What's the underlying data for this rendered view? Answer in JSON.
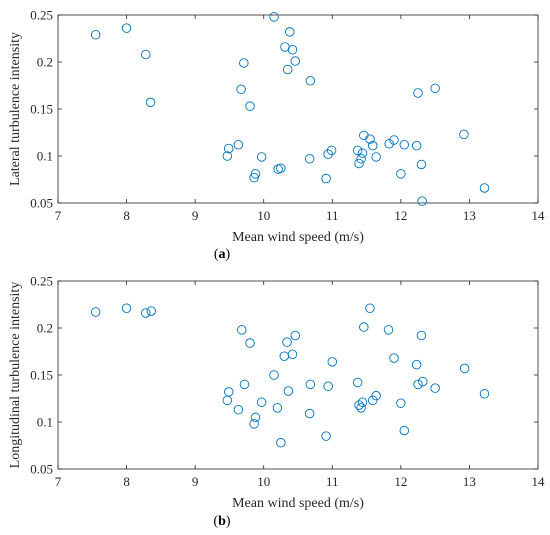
{
  "chart_data": [
    {
      "type": "scatter",
      "panel_label": "a",
      "xlabel": "Mean wind speed (m/s)",
      "ylabel": "Lateral turbulence intensity",
      "xlim": [
        7,
        14
      ],
      "ylim": [
        0.05,
        0.25
      ],
      "xticks": [
        7,
        8,
        9,
        10,
        11,
        12,
        13,
        14
      ],
      "yticks": [
        0.05,
        0.1,
        0.15,
        0.2,
        0.25
      ],
      "ytick_labels": [
        "0.05",
        "0.1",
        "0.15",
        "0.2",
        "0.25"
      ],
      "marker": "open-circle",
      "color": "#0072BD",
      "grid": false,
      "points": [
        [
          7.55,
          0.229
        ],
        [
          8.0,
          0.236
        ],
        [
          8.28,
          0.208
        ],
        [
          8.35,
          0.157
        ],
        [
          9.47,
          0.1
        ],
        [
          9.49,
          0.108
        ],
        [
          9.63,
          0.112
        ],
        [
          9.67,
          0.171
        ],
        [
          9.71,
          0.199
        ],
        [
          9.8,
          0.153
        ],
        [
          9.86,
          0.077
        ],
        [
          9.88,
          0.081
        ],
        [
          9.97,
          0.099
        ],
        [
          10.15,
          0.248
        ],
        [
          10.21,
          0.086
        ],
        [
          10.25,
          0.087
        ],
        [
          10.31,
          0.216
        ],
        [
          10.35,
          0.192
        ],
        [
          10.38,
          0.232
        ],
        [
          10.42,
          0.213
        ],
        [
          10.46,
          0.201
        ],
        [
          10.67,
          0.097
        ],
        [
          10.68,
          0.18
        ],
        [
          10.91,
          0.076
        ],
        [
          10.94,
          0.102
        ],
        [
          10.99,
          0.106
        ],
        [
          11.37,
          0.106
        ],
        [
          11.39,
          0.092
        ],
        [
          11.42,
          0.097
        ],
        [
          11.44,
          0.103
        ],
        [
          11.46,
          0.122
        ],
        [
          11.55,
          0.118
        ],
        [
          11.59,
          0.111
        ],
        [
          11.64,
          0.099
        ],
        [
          11.83,
          0.113
        ],
        [
          11.9,
          0.117
        ],
        [
          12.0,
          0.081
        ],
        [
          12.05,
          0.112
        ],
        [
          12.23,
          0.111
        ],
        [
          12.25,
          0.167
        ],
        [
          12.3,
          0.091
        ],
        [
          12.31,
          0.052
        ],
        [
          12.5,
          0.172
        ],
        [
          12.92,
          0.123
        ],
        [
          13.22,
          0.066
        ]
      ]
    },
    {
      "type": "scatter",
      "panel_label": "b",
      "xlabel": "Mean wind speed (m/s)",
      "ylabel": "Longitudinal turbulence intensity",
      "xlim": [
        7,
        14
      ],
      "ylim": [
        0.05,
        0.25
      ],
      "xticks": [
        7,
        8,
        9,
        10,
        11,
        12,
        13,
        14
      ],
      "yticks": [
        0.05,
        0.1,
        0.15,
        0.2,
        0.25
      ],
      "ytick_labels": [
        "0.05",
        "0.1",
        "0.15",
        "0.2",
        "0.25"
      ],
      "marker": "open-circle",
      "color": "#0072BD",
      "grid": false,
      "points": [
        [
          7.55,
          0.217
        ],
        [
          8.0,
          0.221
        ],
        [
          8.28,
          0.216
        ],
        [
          8.36,
          0.218
        ],
        [
          9.47,
          0.123
        ],
        [
          9.49,
          0.132
        ],
        [
          9.63,
          0.113
        ],
        [
          9.68,
          0.198
        ],
        [
          9.72,
          0.14
        ],
        [
          9.8,
          0.184
        ],
        [
          9.86,
          0.098
        ],
        [
          9.88,
          0.105
        ],
        [
          9.97,
          0.121
        ],
        [
          10.15,
          0.15
        ],
        [
          10.2,
          0.115
        ],
        [
          10.25,
          0.078
        ],
        [
          10.3,
          0.17
        ],
        [
          10.34,
          0.185
        ],
        [
          10.36,
          0.133
        ],
        [
          10.42,
          0.172
        ],
        [
          10.46,
          0.192
        ],
        [
          10.67,
          0.109
        ],
        [
          10.68,
          0.14
        ],
        [
          10.91,
          0.085
        ],
        [
          10.94,
          0.138
        ],
        [
          11.0,
          0.164
        ],
        [
          11.37,
          0.142
        ],
        [
          11.39,
          0.118
        ],
        [
          11.42,
          0.115
        ],
        [
          11.44,
          0.121
        ],
        [
          11.46,
          0.201
        ],
        [
          11.55,
          0.221
        ],
        [
          11.59,
          0.123
        ],
        [
          11.64,
          0.128
        ],
        [
          11.82,
          0.198
        ],
        [
          11.9,
          0.168
        ],
        [
          12.0,
          0.12
        ],
        [
          12.05,
          0.091
        ],
        [
          12.23,
          0.161
        ],
        [
          12.25,
          0.14
        ],
        [
          12.3,
          0.192
        ],
        [
          12.32,
          0.143
        ],
        [
          12.5,
          0.136
        ],
        [
          12.93,
          0.157
        ],
        [
          13.22,
          0.13
        ]
      ]
    }
  ]
}
